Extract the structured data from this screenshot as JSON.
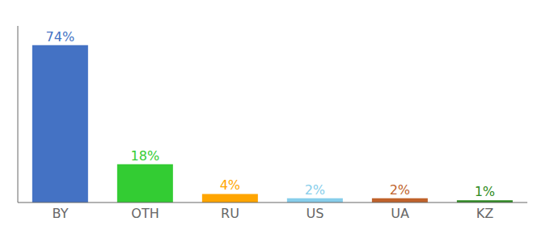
{
  "chart_data": {
    "type": "bar",
    "categories": [
      "BY",
      "OTH",
      "RU",
      "US",
      "UA",
      "KZ"
    ],
    "values": [
      74,
      18,
      4,
      2,
      2,
      1
    ],
    "value_labels": [
      "74%",
      "18%",
      "4%",
      "2%",
      "2%",
      "1%"
    ],
    "colors": [
      "#4472C4",
      "#33CC33",
      "#FFA500",
      "#87CEEB",
      "#C0622B",
      "#2E8B22"
    ],
    "ylim": [
      0,
      83
    ],
    "data_labels": true,
    "tick_labels": "x"
  }
}
